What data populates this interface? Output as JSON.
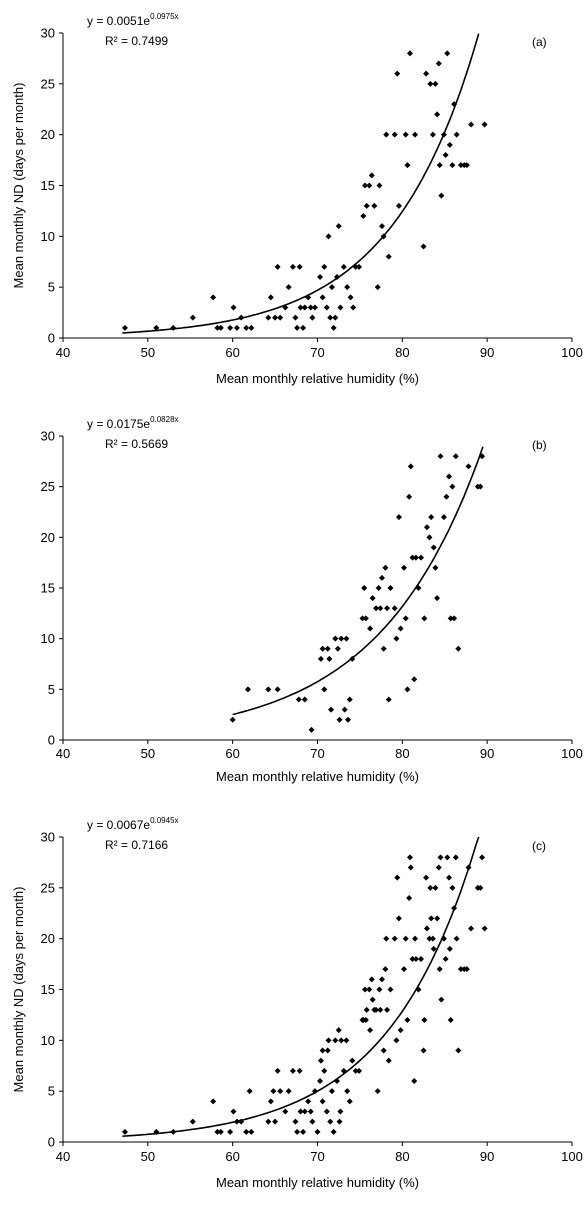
{
  "chart_data": [
    {
      "type": "scatter",
      "panel_label": "(a)",
      "equation": {
        "base": "y = 0.0051e",
        "exponent": "0.0975x"
      },
      "r_squared": "R² = 0.7499",
      "xlabel": "Mean monthly relative humidity (%)",
      "ylabel": "Mean monthly ND (days per month)",
      "xlim": [
        40,
        100
      ],
      "ylim": [
        0,
        30
      ],
      "xticks": [
        "40",
        "50",
        "60",
        "70",
        "80",
        "90",
        "100"
      ],
      "yticks": [
        "0",
        "5",
        "10",
        "15",
        "20",
        "25",
        "30"
      ],
      "fit": {
        "a": 0.0051,
        "b": 0.0975,
        "x_range": [
          47,
          89
        ]
      },
      "points": [
        [
          47.3,
          1
        ],
        [
          51,
          1
        ],
        [
          53,
          1
        ],
        [
          55.3,
          2
        ],
        [
          57.7,
          4
        ],
        [
          58.2,
          1
        ],
        [
          58.6,
          1
        ],
        [
          59.7,
          1
        ],
        [
          60.1,
          3
        ],
        [
          60.5,
          1
        ],
        [
          61,
          2
        ],
        [
          61.6,
          1
        ],
        [
          62.2,
          1
        ],
        [
          64.2,
          2
        ],
        [
          64.5,
          4
        ],
        [
          65,
          2
        ],
        [
          65.3,
          7
        ],
        [
          65.6,
          2
        ],
        [
          66.2,
          3
        ],
        [
          66.6,
          5
        ],
        [
          67.1,
          7
        ],
        [
          67.4,
          2
        ],
        [
          67.6,
          1
        ],
        [
          67.9,
          7
        ],
        [
          68,
          3
        ],
        [
          68.3,
          1
        ],
        [
          68.5,
          3
        ],
        [
          68.9,
          4
        ],
        [
          69.2,
          3
        ],
        [
          69.4,
          2
        ],
        [
          69.7,
          3
        ],
        [
          70.3,
          6
        ],
        [
          70.6,
          4
        ],
        [
          70.8,
          7
        ],
        [
          71.1,
          3
        ],
        [
          71.3,
          10
        ],
        [
          71.5,
          2
        ],
        [
          71.7,
          5
        ],
        [
          71.9,
          1
        ],
        [
          72.1,
          2
        ],
        [
          72.3,
          6
        ],
        [
          72.5,
          11
        ],
        [
          72.7,
          3
        ],
        [
          73.1,
          7
        ],
        [
          73.5,
          5
        ],
        [
          73.9,
          4
        ],
        [
          74.2,
          3
        ],
        [
          74.5,
          7
        ],
        [
          74.9,
          7
        ],
        [
          75.4,
          12
        ],
        [
          75.6,
          15
        ],
        [
          75.8,
          13
        ],
        [
          76.1,
          15
        ],
        [
          76.4,
          16
        ],
        [
          76.7,
          13
        ],
        [
          77.1,
          5
        ],
        [
          77.3,
          15
        ],
        [
          77.6,
          11
        ],
        [
          77.8,
          10
        ],
        [
          78.1,
          20
        ],
        [
          78.4,
          8
        ],
        [
          79.1,
          20
        ],
        [
          79.4,
          26
        ],
        [
          79.6,
          13
        ],
        [
          80.4,
          20
        ],
        [
          80.6,
          17
        ],
        [
          80.9,
          28
        ],
        [
          81.5,
          20
        ],
        [
          82.5,
          9
        ],
        [
          82.8,
          26
        ],
        [
          83.3,
          25
        ],
        [
          83.6,
          20
        ],
        [
          83.9,
          25
        ],
        [
          84.1,
          22
        ],
        [
          84.3,
          27
        ],
        [
          84.4,
          17
        ],
        [
          84.6,
          14
        ],
        [
          84.9,
          20
        ],
        [
          85.1,
          18
        ],
        [
          85.3,
          28
        ],
        [
          85.6,
          19
        ],
        [
          85.9,
          17
        ],
        [
          86.1,
          23
        ],
        [
          86.4,
          20
        ],
        [
          86.9,
          17
        ],
        [
          87.3,
          17
        ],
        [
          87.6,
          17
        ],
        [
          88.1,
          21
        ],
        [
          89.7,
          21
        ]
      ]
    },
    {
      "type": "scatter",
      "panel_label": "(b)",
      "equation": {
        "base": "y = 0.0175e",
        "exponent": "0.0828x"
      },
      "r_squared": "R² = 0.5669",
      "xlabel": "Mean monthly relative humidity (%)",
      "ylabel": "",
      "xlim": [
        40,
        100
      ],
      "ylim": [
        0,
        30
      ],
      "xticks": [
        "40",
        "50",
        "60",
        "70",
        "80",
        "90",
        "100"
      ],
      "yticks": [
        "0",
        "5",
        "10",
        "15",
        "20",
        "25",
        "30"
      ],
      "fit": {
        "a": 0.0175,
        "b": 0.0828,
        "x_range": [
          60,
          89.5
        ]
      },
      "points": [
        [
          60,
          2
        ],
        [
          61.8,
          5
        ],
        [
          64.2,
          5
        ],
        [
          65.3,
          5
        ],
        [
          67.8,
          4
        ],
        [
          68.5,
          4
        ],
        [
          69.3,
          1
        ],
        [
          70.4,
          8
        ],
        [
          70.6,
          9
        ],
        [
          70.8,
          5
        ],
        [
          71.2,
          9
        ],
        [
          71.4,
          8
        ],
        [
          71.6,
          3
        ],
        [
          72.1,
          10
        ],
        [
          72.4,
          9
        ],
        [
          72.6,
          2
        ],
        [
          72.8,
          10
        ],
        [
          73.2,
          3
        ],
        [
          73.4,
          10
        ],
        [
          73.6,
          2
        ],
        [
          73.8,
          4
        ],
        [
          74.1,
          8
        ],
        [
          75.3,
          12
        ],
        [
          75.5,
          15
        ],
        [
          75.7,
          12
        ],
        [
          76.2,
          11
        ],
        [
          76.5,
          14
        ],
        [
          76.9,
          13
        ],
        [
          77.2,
          15
        ],
        [
          77.4,
          13
        ],
        [
          77.6,
          16
        ],
        [
          77.8,
          9
        ],
        [
          78,
          17
        ],
        [
          78.2,
          13
        ],
        [
          78.4,
          4
        ],
        [
          78.6,
          15
        ],
        [
          79.1,
          13
        ],
        [
          79.3,
          10
        ],
        [
          79.6,
          22
        ],
        [
          79.8,
          11
        ],
        [
          80.2,
          17
        ],
        [
          80.4,
          12
        ],
        [
          80.6,
          5
        ],
        [
          80.8,
          24
        ],
        [
          81,
          27
        ],
        [
          81.2,
          18
        ],
        [
          81.4,
          6
        ],
        [
          81.6,
          18
        ],
        [
          81.9,
          15
        ],
        [
          82.2,
          18
        ],
        [
          82.6,
          12
        ],
        [
          82.9,
          21
        ],
        [
          83.2,
          20
        ],
        [
          83.4,
          22
        ],
        [
          83.7,
          19
        ],
        [
          83.9,
          17
        ],
        [
          84.1,
          14
        ],
        [
          84.5,
          28
        ],
        [
          84.9,
          22
        ],
        [
          85.2,
          24
        ],
        [
          85.5,
          26
        ],
        [
          85.7,
          12
        ],
        [
          85.9,
          25
        ],
        [
          86.1,
          12
        ],
        [
          86.3,
          28
        ],
        [
          86.6,
          9
        ],
        [
          87.8,
          27
        ],
        [
          88.9,
          25
        ],
        [
          89.2,
          25
        ],
        [
          89.4,
          28
        ]
      ]
    },
    {
      "type": "scatter",
      "panel_label": "(c)",
      "equation": {
        "base": "y = 0.0067e",
        "exponent": "0.0945x"
      },
      "r_squared": "R² = 0.7166",
      "xlabel": "Mean monthly relative humidity (%)",
      "ylabel": "Mean monthly ND (days per month)",
      "xlim": [
        40,
        100
      ],
      "ylim": [
        0,
        30
      ],
      "xticks": [
        "40",
        "50",
        "60",
        "70",
        "80",
        "90",
        "100"
      ],
      "yticks": [
        "0",
        "5",
        "10",
        "15",
        "20",
        "25",
        "30"
      ],
      "fit": {
        "a": 0.0067,
        "b": 0.0945,
        "x_range": [
          47,
          89
        ]
      },
      "points": [
        [
          47.3,
          1
        ],
        [
          51,
          1
        ],
        [
          53,
          1
        ],
        [
          55.3,
          2
        ],
        [
          57.7,
          4
        ],
        [
          58.2,
          1
        ],
        [
          58.6,
          1
        ],
        [
          59.7,
          1
        ],
        [
          60.1,
          3
        ],
        [
          60.5,
          2
        ],
        [
          61,
          2
        ],
        [
          61.6,
          1
        ],
        [
          62,
          5
        ],
        [
          62.2,
          1
        ],
        [
          64.2,
          2
        ],
        [
          64.5,
          4
        ],
        [
          64.8,
          5
        ],
        [
          65,
          2
        ],
        [
          65.3,
          7
        ],
        [
          65.6,
          5
        ],
        [
          66.2,
          3
        ],
        [
          66.6,
          5
        ],
        [
          67.1,
          7
        ],
        [
          67.4,
          2
        ],
        [
          67.6,
          1
        ],
        [
          67.9,
          7
        ],
        [
          68,
          3
        ],
        [
          68.3,
          1
        ],
        [
          68.5,
          3
        ],
        [
          68.9,
          4
        ],
        [
          69.2,
          3
        ],
        [
          69.4,
          2
        ],
        [
          69.7,
          5
        ],
        [
          70,
          1
        ],
        [
          70.3,
          6
        ],
        [
          70.4,
          8
        ],
        [
          70.6,
          4
        ],
        [
          70.6,
          9
        ],
        [
          70.8,
          7
        ],
        [
          71.1,
          3
        ],
        [
          71.2,
          9
        ],
        [
          71.3,
          10
        ],
        [
          71.5,
          2
        ],
        [
          71.7,
          5
        ],
        [
          71.9,
          1
        ],
        [
          72.1,
          10
        ],
        [
          72.3,
          6
        ],
        [
          72.5,
          11
        ],
        [
          72.6,
          2
        ],
        [
          72.7,
          3
        ],
        [
          72.8,
          10
        ],
        [
          73.1,
          7
        ],
        [
          73.4,
          10
        ],
        [
          73.5,
          5
        ],
        [
          73.8,
          4
        ],
        [
          74.1,
          8
        ],
        [
          74.5,
          7
        ],
        [
          74.9,
          7
        ],
        [
          75.3,
          12
        ],
        [
          75.4,
          12
        ],
        [
          75.6,
          15
        ],
        [
          75.7,
          12
        ],
        [
          75.8,
          13
        ],
        [
          76.1,
          15
        ],
        [
          76.2,
          11
        ],
        [
          76.4,
          16
        ],
        [
          76.5,
          14
        ],
        [
          76.7,
          13
        ],
        [
          76.9,
          13
        ],
        [
          77.1,
          5
        ],
        [
          77.3,
          15
        ],
        [
          77.4,
          13
        ],
        [
          77.6,
          16
        ],
        [
          77.8,
          9
        ],
        [
          78,
          17
        ],
        [
          78.1,
          20
        ],
        [
          78.2,
          13
        ],
        [
          78.4,
          8
        ],
        [
          78.6,
          15
        ],
        [
          79.1,
          20
        ],
        [
          79.3,
          10
        ],
        [
          79.4,
          26
        ],
        [
          79.6,
          22
        ],
        [
          79.8,
          11
        ],
        [
          80.2,
          17
        ],
        [
          80.4,
          20
        ],
        [
          80.6,
          12
        ],
        [
          80.8,
          24
        ],
        [
          80.9,
          28
        ],
        [
          81,
          27
        ],
        [
          81.2,
          18
        ],
        [
          81.4,
          6
        ],
        [
          81.5,
          20
        ],
        [
          81.6,
          18
        ],
        [
          81.9,
          15
        ],
        [
          82.2,
          18
        ],
        [
          82.5,
          9
        ],
        [
          82.6,
          12
        ],
        [
          82.8,
          26
        ],
        [
          82.9,
          21
        ],
        [
          83.2,
          20
        ],
        [
          83.3,
          25
        ],
        [
          83.4,
          22
        ],
        [
          83.6,
          20
        ],
        [
          83.7,
          19
        ],
        [
          83.9,
          25
        ],
        [
          84.1,
          22
        ],
        [
          84.3,
          27
        ],
        [
          84.4,
          17
        ],
        [
          84.5,
          28
        ],
        [
          84.6,
          14
        ],
        [
          84.9,
          20
        ],
        [
          85.1,
          18
        ],
        [
          85.3,
          28
        ],
        [
          85.5,
          26
        ],
        [
          85.6,
          19
        ],
        [
          85.7,
          12
        ],
        [
          85.9,
          25
        ],
        [
          86.1,
          23
        ],
        [
          86.3,
          28
        ],
        [
          86.4,
          20
        ],
        [
          86.6,
          9
        ],
        [
          86.9,
          17
        ],
        [
          87.3,
          17
        ],
        [
          87.6,
          17
        ],
        [
          87.8,
          27
        ],
        [
          88.1,
          21
        ],
        [
          88.9,
          25
        ],
        [
          89.2,
          25
        ],
        [
          89.4,
          28
        ],
        [
          89.7,
          21
        ]
      ]
    }
  ]
}
